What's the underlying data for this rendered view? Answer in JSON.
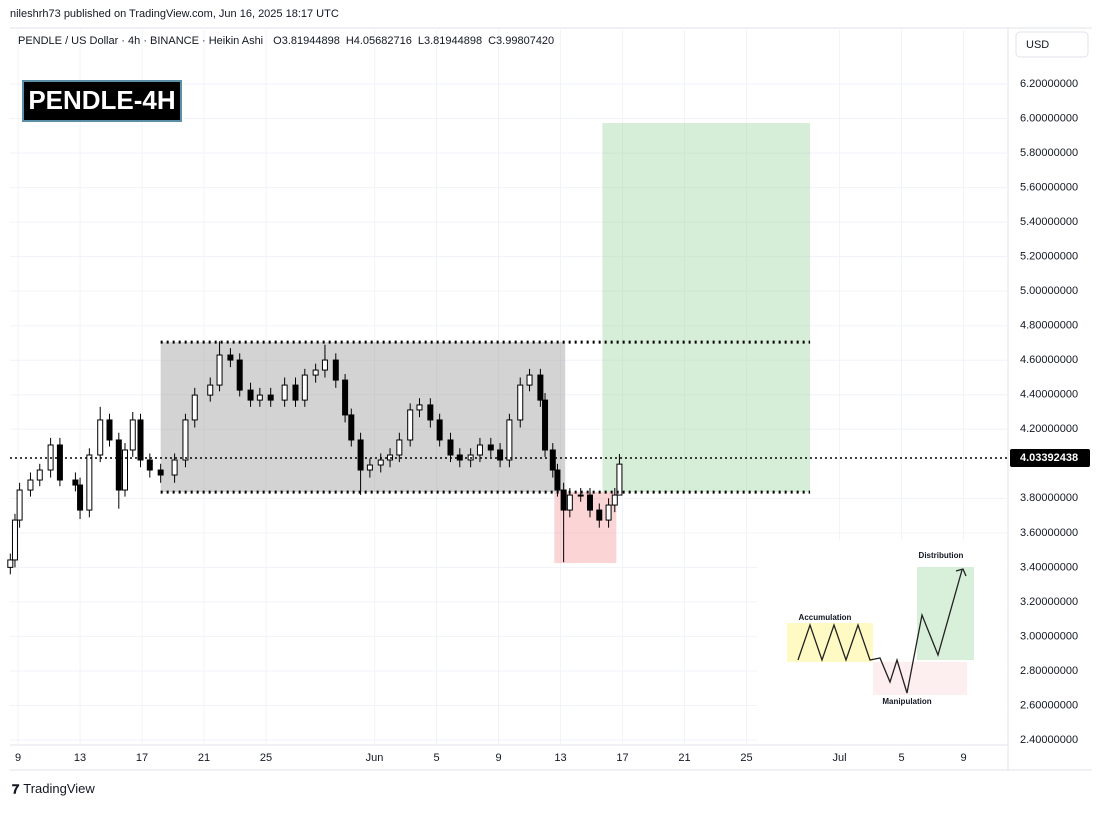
{
  "header": {
    "published": "nileshrh73 published on TradingView.com, Jun 16, 2025 18:17 UTC",
    "symbol": "PENDLE / US Dollar · 4h · BINANCE · Heikin Ashi",
    "ohlc": [
      "O3.81944898",
      "H4.05682716",
      "L3.81944898",
      "C3.99807420"
    ],
    "currency": "USD"
  },
  "footer": {
    "brand": "TradingView"
  },
  "inset": {
    "accumulation": "Accumulation",
    "manipulation": "Manipulation",
    "distribution": "Distribution"
  },
  "chart_data": {
    "type": "candlestick",
    "title": "PENDLE-4H",
    "up_color": "#ffffff",
    "down_color": "#000000",
    "wick_color": "#000000",
    "x": [
      -0.5,
      -0.2,
      0.1,
      0.8,
      1.4,
      2.1,
      2.7,
      3.7,
      4.0,
      4.6,
      5.3,
      5.9,
      6.5,
      6.9,
      7.4,
      7.9,
      8.5,
      9.2,
      10.1,
      10.8,
      11.4,
      12.4,
      13.0,
      13.7,
      14.3,
      15.0,
      15.6,
      16.3,
      17.2,
      17.9,
      18.5,
      19.2,
      19.8,
      20.5,
      21.1,
      21.5,
      22.1,
      22.7,
      23.4,
      24.0,
      24.6,
      25.3,
      25.9,
      26.6,
      27.2,
      27.9,
      28.5,
      29.2,
      29.8,
      30.5,
      31.1,
      31.7,
      32.4,
      33.0,
      33.7,
      34.0,
      34.5,
      34.8,
      35.2,
      35.6,
      36.3,
      36.9,
      37.5,
      38.1,
      38.5,
      38.8
    ],
    "open": [
      3.4,
      3.443,
      3.674,
      3.848,
      3.906,
      3.964,
      4.109,
      3.906,
      3.877,
      3.732,
      4.051,
      4.254,
      4.138,
      3.848,
      4.08,
      4.254,
      4.022,
      3.964,
      3.935,
      4.022,
      4.254,
      4.398,
      4.456,
      4.63,
      4.601,
      4.427,
      4.369,
      4.398,
      4.369,
      4.456,
      4.369,
      4.514,
      4.543,
      4.601,
      4.485,
      4.283,
      4.138,
      3.964,
      3.993,
      4.022,
      4.051,
      4.138,
      4.312,
      4.341,
      4.254,
      4.138,
      4.051,
      4.022,
      4.051,
      4.109,
      4.08,
      4.022,
      4.254,
      4.456,
      4.514,
      4.369,
      4.08,
      3.964,
      3.848,
      3.732,
      3.819,
      3.819,
      3.732,
      3.674,
      3.761,
      3.819
    ],
    "high": [
      3.48,
      3.71,
      3.89,
      3.95,
      4.0,
      4.15,
      4.15,
      3.95,
      3.92,
      4.09,
      4.33,
      4.29,
      4.18,
      4.12,
      4.3,
      4.29,
      4.06,
      4.0,
      4.06,
      4.29,
      4.44,
      4.5,
      4.71,
      4.67,
      4.64,
      4.47,
      4.44,
      4.44,
      4.5,
      4.5,
      4.55,
      4.58,
      4.69,
      4.64,
      4.52,
      4.32,
      4.18,
      4.03,
      4.06,
      4.09,
      4.18,
      4.35,
      4.38,
      4.38,
      4.29,
      4.18,
      4.09,
      4.09,
      4.15,
      4.15,
      4.12,
      4.29,
      4.5,
      4.55,
      4.55,
      4.41,
      4.12,
      4.0,
      3.89,
      3.86,
      3.86,
      3.86,
      3.77,
      3.8,
      3.86,
      4.057
    ],
    "low": [
      3.36,
      3.4,
      3.63,
      3.81,
      3.87,
      3.92,
      3.87,
      3.84,
      3.68,
      3.69,
      4.01,
      4.1,
      3.74,
      3.81,
      4.04,
      3.98,
      3.92,
      3.89,
      3.89,
      3.98,
      4.21,
      4.36,
      4.42,
      4.56,
      4.39,
      4.33,
      4.33,
      4.33,
      4.33,
      4.33,
      4.33,
      4.47,
      4.5,
      4.44,
      4.24,
      4.1,
      3.82,
      3.92,
      3.95,
      3.98,
      4.01,
      4.1,
      4.27,
      4.21,
      4.1,
      4.01,
      3.98,
      3.98,
      4.01,
      4.04,
      3.98,
      3.98,
      4.21,
      4.42,
      4.33,
      4.04,
      3.92,
      3.81,
      3.43,
      3.69,
      3.78,
      3.69,
      3.63,
      3.63,
      3.72,
      3.819
    ],
    "close": [
      3.443,
      3.674,
      3.848,
      3.906,
      3.964,
      4.109,
      3.906,
      3.877,
      3.732,
      4.051,
      4.254,
      4.138,
      3.848,
      4.08,
      4.254,
      4.022,
      3.964,
      3.935,
      4.022,
      4.254,
      4.398,
      4.456,
      4.63,
      4.601,
      4.427,
      4.369,
      4.398,
      4.369,
      4.456,
      4.369,
      4.514,
      4.543,
      4.601,
      4.485,
      4.283,
      4.138,
      3.964,
      3.993,
      4.022,
      4.051,
      4.138,
      4.312,
      4.341,
      4.254,
      4.138,
      4.051,
      4.022,
      4.051,
      4.109,
      4.08,
      4.022,
      4.254,
      4.456,
      4.514,
      4.369,
      4.08,
      3.964,
      3.848,
      3.732,
      3.819,
      3.819,
      3.732,
      3.674,
      3.761,
      3.819,
      3.998
    ],
    "xlim": [
      -0.52,
      63.87
    ],
    "xticks": [
      {
        "value": 0,
        "label": "9"
      },
      {
        "value": 4,
        "label": "13"
      },
      {
        "value": 8,
        "label": "17"
      },
      {
        "value": 12,
        "label": "21"
      },
      {
        "value": 16,
        "label": "25"
      },
      {
        "value": 23,
        "label": "Jun"
      },
      {
        "value": 27,
        "label": "5"
      },
      {
        "value": 31,
        "label": "9"
      },
      {
        "value": 35,
        "label": "13"
      },
      {
        "value": 39,
        "label": "17"
      },
      {
        "value": 43,
        "label": "21"
      },
      {
        "value": 47,
        "label": "25"
      },
      {
        "value": 53,
        "label": "Jul"
      },
      {
        "value": 57,
        "label": "5"
      },
      {
        "value": 61,
        "label": "9"
      }
    ],
    "ylim": [
      2.371,
      6.513
    ],
    "yticks": [
      {
        "value": 2.4,
        "label": "2.40000000"
      },
      {
        "value": 2.6,
        "label": "2.60000000"
      },
      {
        "value": 2.8,
        "label": "2.80000000"
      },
      {
        "value": 3.0,
        "label": "3.00000000"
      },
      {
        "value": 3.2,
        "label": "3.20000000"
      },
      {
        "value": 3.4,
        "label": "3.40000000"
      },
      {
        "value": 3.6,
        "label": "3.60000000"
      },
      {
        "value": 3.8,
        "label": "3.80000000"
      },
      {
        "value": 4.2,
        "label": "4.20000000"
      },
      {
        "value": 4.4,
        "label": "4.40000000"
      },
      {
        "value": 4.6,
        "label": "4.60000000"
      },
      {
        "value": 4.8,
        "label": "4.80000000"
      },
      {
        "value": 5.0,
        "label": "5.00000000"
      },
      {
        "value": 5.2,
        "label": "5.20000000"
      },
      {
        "value": 5.4,
        "label": "5.40000000"
      },
      {
        "value": 5.6,
        "label": "5.60000000"
      },
      {
        "value": 5.8,
        "label": "5.80000000"
      },
      {
        "value": 6.0,
        "label": "6.00000000"
      },
      {
        "value": 6.2,
        "label": "6.20000000"
      }
    ],
    "grid": true,
    "last_price": 4.03392438,
    "zones": [
      {
        "x": [
          9.2,
          35.3
        ],
        "y": [
          3.836,
          4.705
        ],
        "color": "#9e9e9e"
      },
      {
        "x": [
          37.7,
          51.1
        ],
        "y": [
          3.836,
          5.974
        ],
        "color": "#a5d6a7"
      },
      {
        "x": [
          34.6,
          38.6
        ],
        "y": [
          3.425,
          3.836
        ],
        "color": "#f7a1a1"
      }
    ],
    "levels": [
      {
        "x": [
          9.2,
          51.1
        ],
        "y": 4.705
      },
      {
        "x": [
          9.2,
          51.1
        ],
        "y": 3.836
      }
    ]
  }
}
